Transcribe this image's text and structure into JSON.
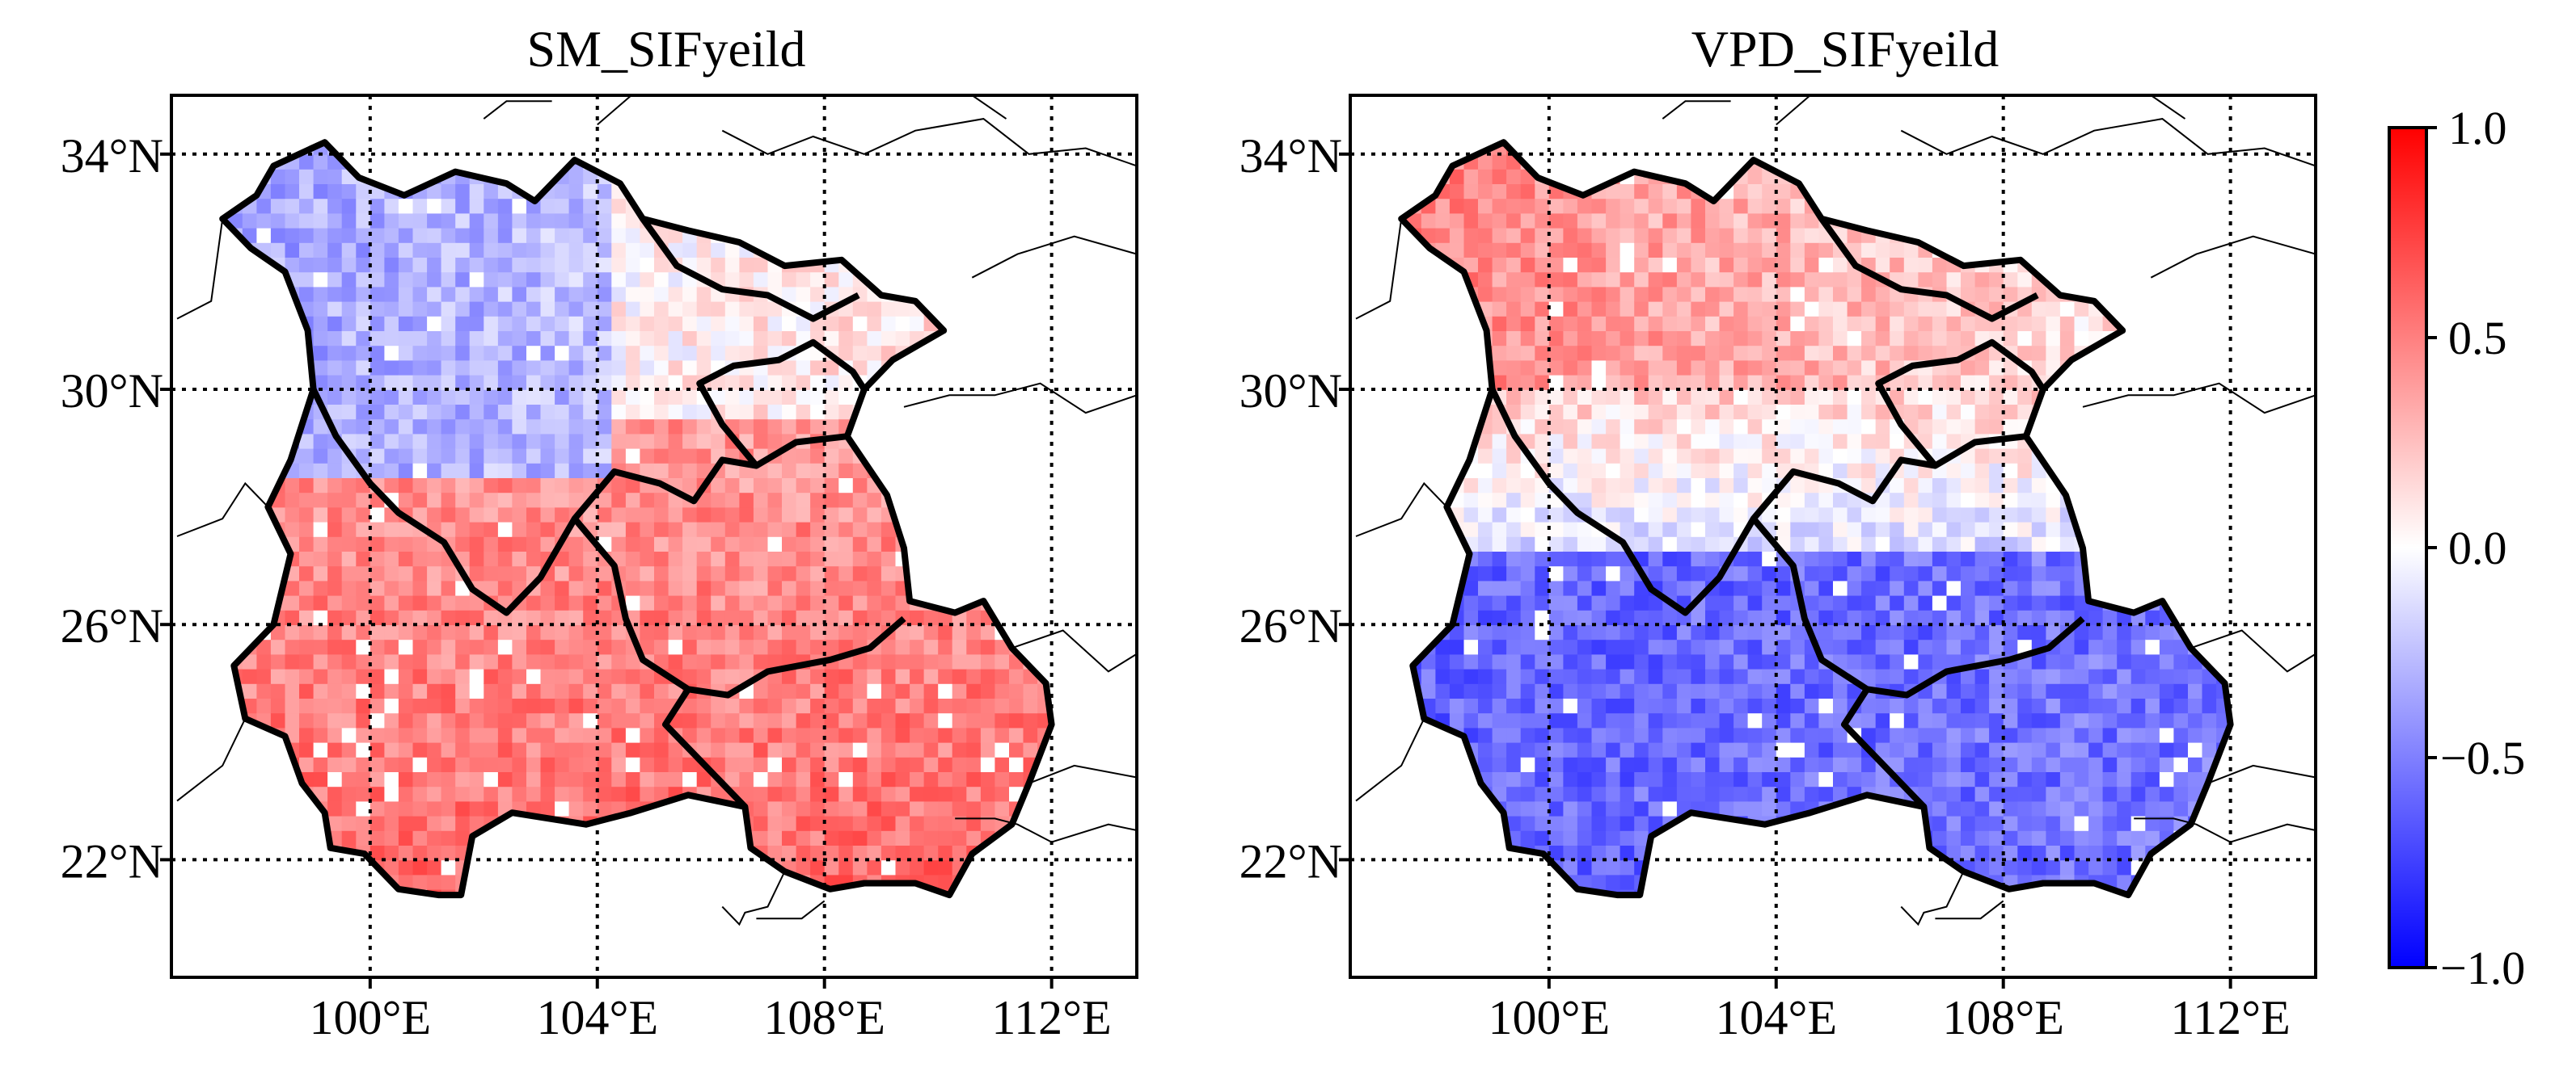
{
  "figure": {
    "colorbar": {
      "ticks": [
        {
          "value": 1.0,
          "label": "1.0"
        },
        {
          "value": 0.5,
          "label": "0.5"
        },
        {
          "value": 0.0,
          "label": "0.0"
        },
        {
          "value": -0.5,
          "label": "−0.5"
        },
        {
          "value": -1.0,
          "label": "−1.0"
        }
      ],
      "min": -1.0,
      "max": 1.0,
      "colors": {
        "low": "#0000ff",
        "mid": "#ffffff",
        "high": "#ff0000"
      }
    }
  },
  "chart_data": [
    {
      "type": "heatmap",
      "title": "SM_SIFyeild",
      "x_range": [
        96.5,
        113.5
      ],
      "y_range": [
        20,
        35
      ],
      "x_ticks": [
        {
          "value": 100,
          "label": "100°E"
        },
        {
          "value": 104,
          "label": "104°E"
        },
        {
          "value": 108,
          "label": "108°E"
        },
        {
          "value": 112,
          "label": "112°E"
        }
      ],
      "y_ticks": [
        {
          "value": 34,
          "label": "34°N"
        },
        {
          "value": 30,
          "label": "30°N"
        },
        {
          "value": 26,
          "label": "26°N"
        },
        {
          "value": 22,
          "label": "22°N"
        }
      ],
      "grid": true,
      "value_range": [
        -1.0,
        1.0
      ],
      "pattern": "negative (blue, about -0.3) in the northwest above ~28°N west of 104°E; near zero in the north-center; positive (red, about 0.4–0.6) across the south and east"
    },
    {
      "type": "heatmap",
      "title": "VPD_SIFyeild",
      "x_range": [
        96.5,
        113.5
      ],
      "y_range": [
        20,
        35
      ],
      "x_ticks": [
        {
          "value": 100,
          "label": "100°E"
        },
        {
          "value": 104,
          "label": "104°E"
        },
        {
          "value": 108,
          "label": "108°E"
        },
        {
          "value": 112,
          "label": "112°E"
        }
      ],
      "y_ticks": [
        {
          "value": 34,
          "label": "34°N"
        },
        {
          "value": 30,
          "label": "30°N"
        },
        {
          "value": 26,
          "label": "26°N"
        },
        {
          "value": 22,
          "label": "22°N"
        }
      ],
      "grid": true,
      "value_range": [
        -1.0,
        1.0
      ],
      "pattern": "positive (red, about 0.4–0.5) in the north above ~30°N; near zero around 27–29°N; negative (blue, about -0.5 to -0.7) across the south"
    }
  ]
}
